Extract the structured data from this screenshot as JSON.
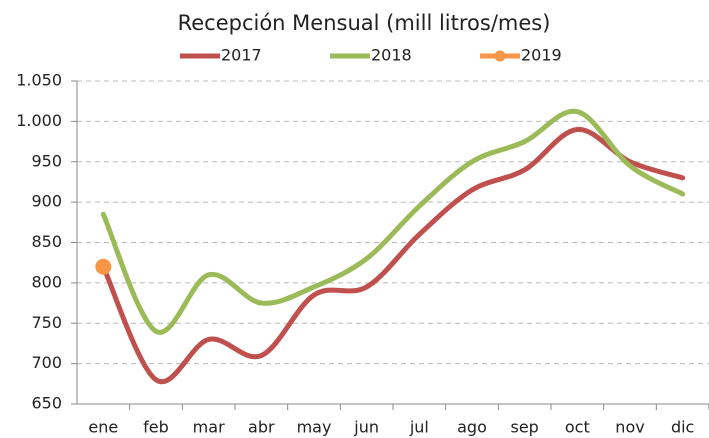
{
  "chart_data": {
    "type": "line",
    "title": "Recepción Mensual (mill litros/mes)",
    "categories": [
      "ene",
      "feb",
      "mar",
      "abr",
      "may",
      "jun",
      "jul",
      "ago",
      "sep",
      "oct",
      "nov",
      "dic"
    ],
    "series": [
      {
        "name": "2017",
        "color": "#c0504d",
        "values": [
          820,
          680,
          730,
          710,
          785,
          795,
          860,
          915,
          940,
          990,
          950,
          930
        ]
      },
      {
        "name": "2018",
        "color": "#9bbb59",
        "values": [
          885,
          740,
          810,
          775,
          795,
          830,
          895,
          950,
          975,
          1012,
          945,
          910
        ]
      },
      {
        "name": "2019",
        "color": "#f79646",
        "marker": true,
        "values": [
          820,
          null,
          null,
          null,
          null,
          null,
          null,
          null,
          null,
          null,
          null,
          null
        ]
      }
    ],
    "ylim": [
      650,
      1050
    ],
    "yticks": [
      650,
      700,
      750,
      800,
      850,
      900,
      950,
      {
        "value": 1000,
        "label": "1.000"
      },
      {
        "value": 1050,
        "label": "1.050"
      }
    ],
    "grid": true,
    "legend": "top"
  }
}
